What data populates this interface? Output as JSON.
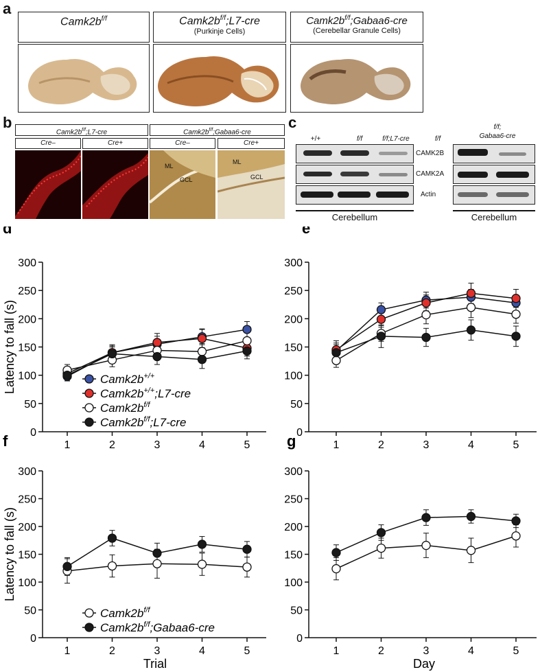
{
  "panel_a": {
    "letter": "a",
    "columns": [
      {
        "title": "Camk2b",
        "title_sup": "f/f",
        "title_rest": "",
        "subtitle": ""
      },
      {
        "title": "Camk2b",
        "title_sup": "f/f",
        "title_rest": ";L7-cre",
        "subtitle": "(Purkinje Cells)"
      },
      {
        "title": "Camk2b",
        "title_sup": "f/f",
        "title_rest": ";Gabaa6-cre",
        "subtitle": "(Cerebellar Granule Cells)"
      }
    ]
  },
  "panel_b": {
    "letter": "b",
    "groups": [
      {
        "title": "Camk2b",
        "sup": "f/f",
        "rest": ";L7-cre"
      },
      {
        "title": "Camk2b",
        "sup": "f/f",
        "rest": ";Gabaa6-cre"
      }
    ],
    "cols": [
      "Cre–",
      "Cre+",
      "Cre–",
      "Cre+"
    ],
    "layer_labels": {
      "ml": "ML",
      "gcl": "GCL"
    }
  },
  "panel_c": {
    "letter": "c",
    "left_lanes": [
      "+/+",
      "f/f",
      "f/f;L7-cre"
    ],
    "right_lanes": [
      "f/f",
      "f/f;",
      "Gabaa6-cre"
    ],
    "bands": [
      "CAMK2B",
      "CAMK2A",
      "Actin"
    ],
    "tissue_left": "Cerebellum",
    "tissue_right": "Cerebellum"
  },
  "colors": {
    "blue": "#3a52a4",
    "red": "#e0302c",
    "white": "#ffffff",
    "black": "#1a1a1a"
  },
  "ylabel": "Latency to fall (s)",
  "xlabel_trial": "Trial",
  "xlabel_day": "Day",
  "chart_data": [
    {
      "letter": "d",
      "type": "line",
      "x": [
        1,
        2,
        3,
        4,
        5
      ],
      "ylim": [
        0,
        300
      ],
      "yticks": [
        0,
        50,
        100,
        150,
        200,
        250,
        300
      ],
      "series": [
        {
          "name": "Camk2b+/+",
          "color": "blue",
          "values": [
            98,
            140,
            155,
            168,
            181
          ],
          "err": [
            8,
            12,
            14,
            14,
            14
          ]
        },
        {
          "name": "Camk2b+/+;L7-cre",
          "color": "red",
          "values": [
            103,
            140,
            158,
            165,
            148
          ],
          "err": [
            8,
            14,
            16,
            16,
            14
          ]
        },
        {
          "name": "Camk2bf/f",
          "color": "white",
          "values": [
            109,
            127,
            144,
            142,
            161
          ],
          "err": [
            10,
            12,
            16,
            14,
            14
          ]
        },
        {
          "name": "Camk2bf/f;L7-cre",
          "color": "black",
          "values": [
            100,
            138,
            133,
            128,
            143
          ],
          "err": [
            10,
            12,
            14,
            16,
            14
          ]
        }
      ],
      "legend": [
        {
          "base": "Camk2b",
          "sup": "+/+",
          "rest": ""
        },
        {
          "base": "Camk2b",
          "sup": "+/+",
          "rest": ";L7-cre"
        },
        {
          "base": "Camk2b",
          "sup": "f/f",
          "rest": ""
        },
        {
          "base": "Camk2b",
          "sup": "f/f",
          "rest": ";L7-cre"
        }
      ]
    },
    {
      "letter": "e",
      "type": "line",
      "x": [
        1,
        2,
        3,
        4,
        5
      ],
      "ylim": [
        0,
        300
      ],
      "yticks": [
        0,
        50,
        100,
        150,
        200,
        250,
        300
      ],
      "series": [
        {
          "name": "Camk2b+/+",
          "color": "blue",
          "values": [
            143,
            216,
            233,
            238,
            228
          ],
          "err": [
            14,
            12,
            14,
            14,
            14
          ]
        },
        {
          "name": "Camk2b+/+;L7-cre",
          "color": "red",
          "values": [
            145,
            199,
            228,
            245,
            236
          ],
          "err": [
            16,
            14,
            14,
            18,
            16
          ]
        },
        {
          "name": "Camk2bf/f",
          "color": "white",
          "values": [
            126,
            174,
            207,
            220,
            208
          ],
          "err": [
            12,
            14,
            16,
            18,
            16
          ]
        },
        {
          "name": "Camk2bf/f;L7-cre",
          "color": "black",
          "values": [
            140,
            169,
            167,
            180,
            169
          ],
          "err": [
            14,
            20,
            16,
            18,
            18
          ]
        }
      ]
    },
    {
      "letter": "f",
      "type": "line",
      "x": [
        1,
        2,
        3,
        4,
        5
      ],
      "ylim": [
        0,
        300
      ],
      "yticks": [
        0,
        50,
        100,
        150,
        200,
        250,
        300
      ],
      "series": [
        {
          "name": "Camk2bf/f",
          "color": "white",
          "values": [
            120,
            129,
            133,
            132,
            127
          ],
          "err": [
            22,
            20,
            26,
            20,
            18
          ]
        },
        {
          "name": "Camk2bf/f;Gabaa6-cre",
          "color": "black",
          "values": [
            128,
            179,
            152,
            168,
            159
          ],
          "err": [
            16,
            14,
            18,
            14,
            14
          ]
        }
      ],
      "legend": [
        {
          "base": "Camk2b",
          "sup": "f/f",
          "rest": ""
        },
        {
          "base": "Camk2b",
          "sup": "f/f",
          "rest": ";Gabaa6-cre"
        }
      ]
    },
    {
      "letter": "g",
      "type": "line",
      "x": [
        1,
        2,
        3,
        4,
        5
      ],
      "ylim": [
        0,
        300
      ],
      "yticks": [
        0,
        50,
        100,
        150,
        200,
        250,
        300
      ],
      "series": [
        {
          "name": "Camk2bf/f",
          "color": "white",
          "values": [
            124,
            161,
            166,
            157,
            183
          ],
          "err": [
            20,
            18,
            22,
            22,
            20
          ]
        },
        {
          "name": "Camk2bf/f;Gabaa6-cre",
          "color": "black",
          "values": [
            153,
            189,
            216,
            218,
            210
          ],
          "err": [
            14,
            14,
            14,
            12,
            12
          ]
        }
      ]
    }
  ]
}
